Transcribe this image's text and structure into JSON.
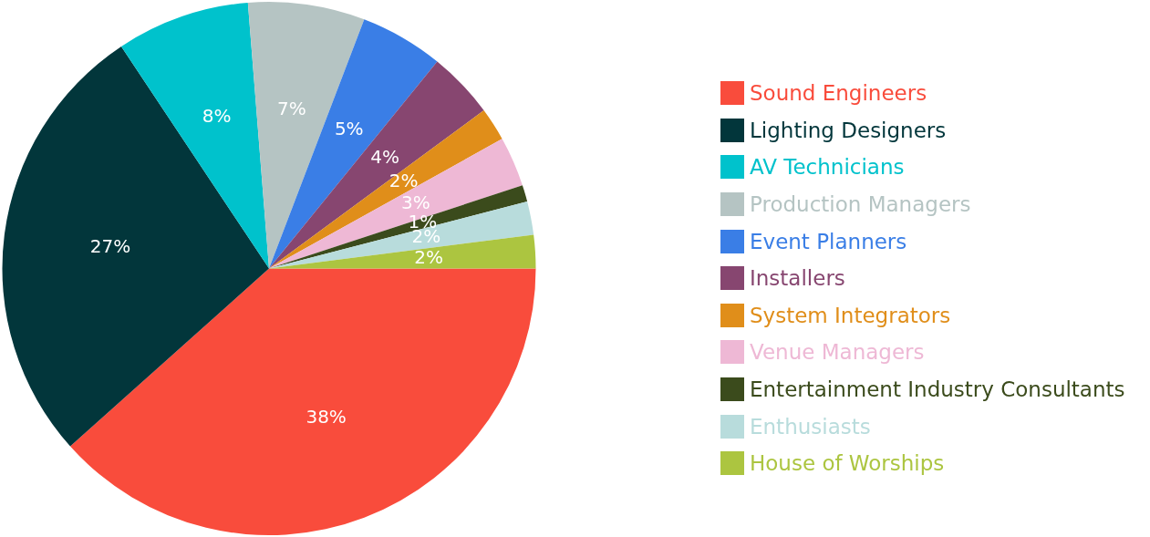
{
  "chart_data": {
    "type": "pie",
    "categories": [
      "Sound Engineers",
      "Lighting Designers",
      "AV Technicians",
      "Production Managers",
      "Event Planners",
      "Installers",
      "System Integrators",
      "Venue Managers",
      "Entertainment Industry Consultants",
      "Enthusiasts",
      "House of Worships"
    ],
    "values": [
      38,
      27,
      8,
      7,
      5,
      4,
      2,
      3,
      1,
      2,
      2
    ],
    "value_labels": [
      "38%",
      "27%",
      "8%",
      "7%",
      "5%",
      "4%",
      "2%",
      "3%",
      "1%",
      "2%",
      "2%"
    ],
    "colors": [
      "#f94c3c",
      "#02363b",
      "#00c2cc",
      "#b5c4c3",
      "#3a7ee6",
      "#874670",
      "#e08e1a",
      "#eeb8d5",
      "#3b4b1c",
      "#b8dcdc",
      "#acc540"
    ],
    "legend": "right"
  }
}
